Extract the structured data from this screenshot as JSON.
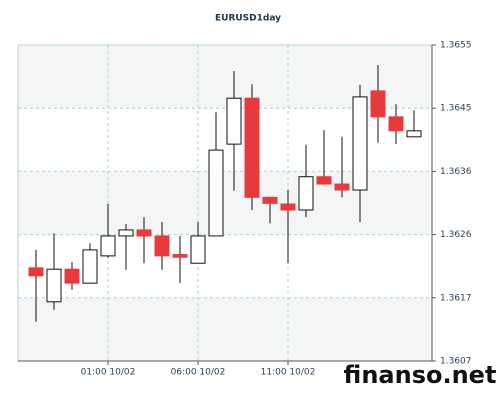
{
  "chart_data": {
    "type": "candlestick",
    "title": "EURUSD1day",
    "categories": [
      null,
      null,
      null,
      null,
      "01:00 10/02",
      null,
      null,
      null,
      null,
      "06:00 10/02",
      null,
      null,
      null,
      null,
      "11:00 10/02",
      null,
      null,
      null,
      null,
      null,
      null,
      null
    ],
    "open": [
      1.3621,
      1.36159,
      1.36208,
      1.36187,
      1.36228,
      1.36258,
      1.36267,
      1.36258,
      1.3623,
      1.36217,
      1.36258,
      1.36396,
      1.36465,
      1.36316,
      1.36306,
      1.36297,
      1.36347,
      1.36336,
      1.36327,
      1.36476,
      1.36437,
      1.36407
    ],
    "high": [
      1.36237,
      1.36262,
      1.36219,
      1.36247,
      1.36306,
      1.36276,
      1.36286,
      1.36279,
      1.36258,
      1.36279,
      1.36444,
      1.36506,
      1.36486,
      1.36316,
      1.36327,
      1.36395,
      1.36417,
      1.36407,
      1.36485,
      1.36515,
      1.36456,
      1.36447
    ],
    "low": [
      1.36129,
      1.36147,
      1.36177,
      1.36187,
      1.36225,
      1.36207,
      1.36217,
      1.36207,
      1.36187,
      1.36217,
      1.36258,
      1.36326,
      1.36297,
      1.36277,
      1.36217,
      1.36286,
      1.36335,
      1.36316,
      1.36279,
      1.36398,
      1.36396,
      1.36407
    ],
    "close": [
      1.36198,
      1.36208,
      1.36187,
      1.36237,
      1.36258,
      1.36267,
      1.36258,
      1.36228,
      1.36226,
      1.36258,
      1.36387,
      1.36465,
      1.36316,
      1.36307,
      1.36297,
      1.36347,
      1.36336,
      1.36327,
      1.36467,
      1.36437,
      1.36416,
      1.36416
    ],
    "up_color": "#ffffff",
    "down_color": "#e8393c",
    "ylim": [
      1.3607,
      1.36545
    ],
    "yticks": [
      1.3607,
      {
        "value": 1.36165,
        "label": "1.3617"
      },
      1.3626,
      {
        "value": 1.36355,
        "label": "1.3636"
      },
      1.3645,
      {
        "value": 1.36545,
        "label": "1.3655"
      }
    ],
    "grid": true,
    "watermark": "finanso.net"
  }
}
